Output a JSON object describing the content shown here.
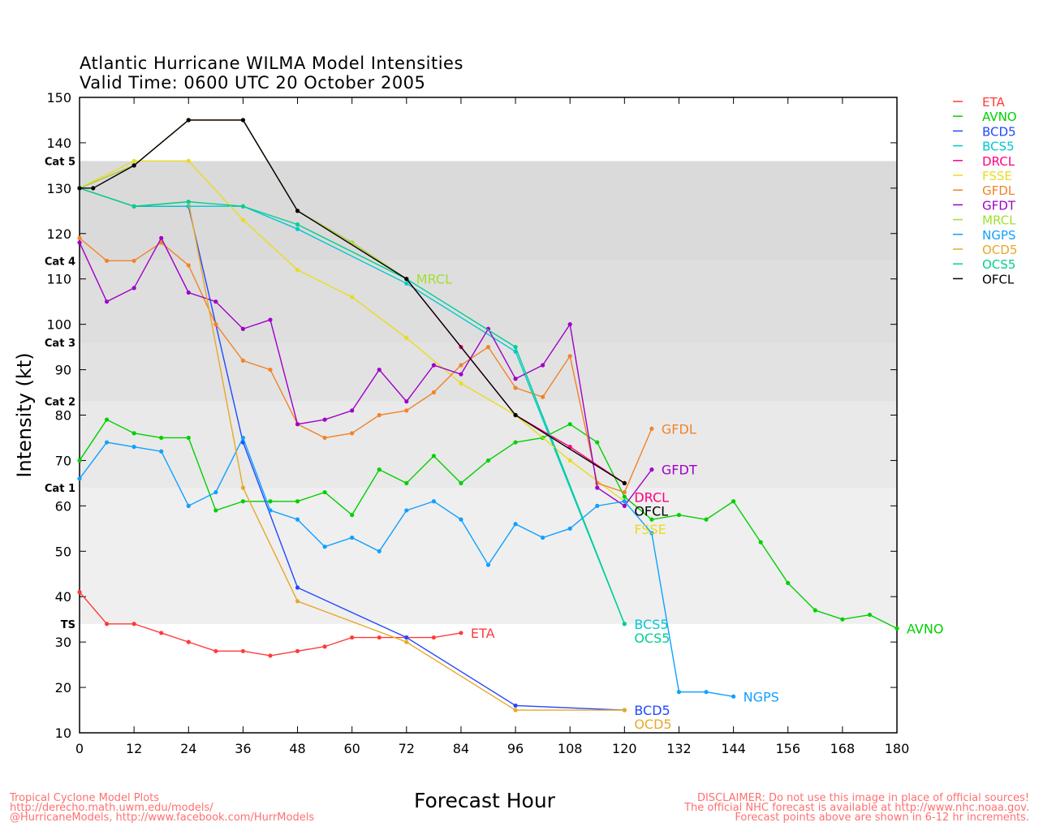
{
  "chart_data": {
    "type": "line",
    "title": "Atlantic Hurricane WILMA Model Intensities",
    "subtitle": "Valid Time: 0600 UTC 20 October 2005",
    "xlabel": "Forecast Hour",
    "ylabel": "Intensity (kt)",
    "xlim": [
      0,
      180
    ],
    "ylim": [
      10,
      150
    ],
    "xticks": [
      0,
      12,
      24,
      36,
      48,
      60,
      72,
      84,
      96,
      108,
      120,
      132,
      144,
      156,
      168,
      180
    ],
    "yticks": [
      10,
      20,
      30,
      40,
      50,
      60,
      70,
      80,
      90,
      100,
      110,
      120,
      130,
      140,
      150
    ],
    "legend_position": "right",
    "categories": [
      {
        "label": "TS",
        "min": 34,
        "max": 64,
        "color": "#efefef"
      },
      {
        "label": "Cat 1",
        "min": 64,
        "max": 83,
        "color": "#e9e9e9"
      },
      {
        "label": "Cat 2",
        "min": 83,
        "max": 96,
        "color": "#e2e2e2"
      },
      {
        "label": "Cat 3",
        "min": 96,
        "max": 114,
        "color": "#dedede"
      },
      {
        "label": "Cat 4",
        "min": 114,
        "max": 136,
        "color": "#dadada"
      },
      {
        "label": "Cat 5",
        "min": 136,
        "max": 150,
        "color": "#ffffff"
      }
    ],
    "series": [
      {
        "name": "ETA",
        "color": "#ff3b3b",
        "end_label": "ETA",
        "x": [
          0,
          6,
          12,
          18,
          24,
          30,
          36,
          42,
          48,
          54,
          60,
          66,
          72,
          78,
          84
        ],
        "y": [
          41,
          34,
          34,
          32,
          30,
          28,
          28,
          27,
          28,
          29,
          31,
          31,
          31,
          31,
          32
        ]
      },
      {
        "name": "AVNO",
        "color": "#00d000",
        "end_label": "AVNO",
        "x": [
          0,
          6,
          12,
          18,
          24,
          30,
          36,
          42,
          48,
          54,
          60,
          66,
          72,
          78,
          84,
          90,
          96,
          102,
          108,
          114,
          120,
          126,
          132,
          138,
          144,
          150,
          156,
          162,
          168,
          174,
          180
        ],
        "y": [
          70,
          79,
          76,
          75,
          75,
          59,
          61,
          61,
          61,
          63,
          58,
          68,
          65,
          71,
          65,
          70,
          74,
          75,
          78,
          74,
          62,
          57,
          58,
          57,
          61,
          52,
          43,
          37,
          35,
          36,
          33
        ]
      },
      {
        "name": "BCD5",
        "color": "#2048ff",
        "end_label": "BCD5",
        "x": [
          0,
          12,
          24,
          36,
          48,
          72,
          96,
          120
        ],
        "y": [
          130,
          126,
          126,
          74,
          42,
          31,
          16,
          15
        ]
      },
      {
        "name": "BCS5",
        "color": "#00c8d0",
        "end_label": "BCS5",
        "x": [
          0,
          12,
          24,
          36,
          48,
          72,
          96,
          120
        ],
        "y": [
          130,
          126,
          126,
          126,
          121,
          109,
          94,
          34
        ]
      },
      {
        "name": "DRCL",
        "color": "#ff0080",
        "end_label": "DRCL",
        "x": [
          0,
          12,
          24,
          36,
          48,
          60,
          72,
          84,
          96,
          108,
          120
        ],
        "y": [
          130,
          135,
          145,
          145,
          125,
          118,
          110,
          95,
          80,
          73,
          65
        ]
      },
      {
        "name": "FSSE",
        "color": "#e8dc20",
        "end_label": "FSSE",
        "x": [
          0,
          12,
          24,
          36,
          48,
          60,
          72,
          84,
          96,
          108,
          120
        ],
        "y": [
          130,
          136,
          136,
          123,
          112,
          106,
          97,
          87,
          80,
          70,
          61
        ]
      },
      {
        "name": "GFDL",
        "color": "#f08428",
        "end_label": "GFDL",
        "x": [
          0,
          6,
          12,
          18,
          24,
          30,
          36,
          42,
          48,
          54,
          60,
          66,
          72,
          78,
          84,
          90,
          96,
          102,
          108,
          114,
          120,
          126
        ],
        "y": [
          119,
          114,
          114,
          118,
          113,
          100,
          92,
          90,
          78,
          75,
          76,
          80,
          81,
          85,
          91,
          95,
          86,
          84,
          93,
          65,
          63,
          77
        ]
      },
      {
        "name": "GFDT",
        "color": "#a000c8",
        "end_label": "GFDT",
        "x": [
          0,
          6,
          12,
          18,
          24,
          30,
          36,
          42,
          48,
          54,
          60,
          66,
          72,
          78,
          84,
          90,
          96,
          102,
          108,
          114,
          120,
          126
        ],
        "y": [
          118,
          105,
          108,
          119,
          107,
          105,
          99,
          101,
          78,
          79,
          81,
          90,
          83,
          91,
          89,
          99,
          88,
          91,
          100,
          64,
          60,
          68
        ]
      },
      {
        "name": "MRCL",
        "color": "#a0e030",
        "end_label": "MRCL",
        "x": [
          0,
          12,
          24,
          36,
          48,
          60,
          72
        ],
        "y": [
          130,
          135,
          145,
          145,
          125,
          118,
          110
        ]
      },
      {
        "name": "NGPS",
        "color": "#10a0ff",
        "end_label": "NGPS",
        "x": [
          0,
          6,
          12,
          18,
          24,
          30,
          36,
          42,
          48,
          54,
          60,
          66,
          72,
          78,
          84,
          90,
          96,
          102,
          108,
          114,
          120,
          126,
          132,
          138,
          144
        ],
        "y": [
          66,
          74,
          73,
          72,
          60,
          63,
          75,
          59,
          57,
          51,
          53,
          50,
          59,
          61,
          57,
          47,
          56,
          53,
          55,
          60,
          61,
          54,
          19,
          19,
          18
        ]
      },
      {
        "name": "OCD5",
        "color": "#e8a828",
        "end_label": "OCD5",
        "x": [
          0,
          12,
          24,
          36,
          48,
          72,
          96,
          120
        ],
        "y": [
          130,
          126,
          127,
          64,
          39,
          30,
          15,
          15
        ]
      },
      {
        "name": "OCS5",
        "color": "#00d090",
        "end_label": "OCS5",
        "x": [
          0,
          12,
          24,
          36,
          48,
          72,
          96,
          120
        ],
        "y": [
          130,
          126,
          127,
          126,
          122,
          110,
          95,
          34
        ]
      },
      {
        "name": "OFCL",
        "color": "#000000",
        "end_label": "OFCL",
        "x": [
          0,
          3,
          12,
          24,
          36,
          48,
          72,
          96,
          120
        ],
        "y": [
          130,
          130,
          135,
          145,
          145,
          125,
          110,
          80,
          65
        ]
      }
    ]
  },
  "footer": {
    "left": [
      "Tropical Cyclone Model Plots",
      "http://derecho.math.uwm.edu/models/",
      "@HurricaneModels, http://www.facebook.com/HurrModels"
    ],
    "right": [
      "DISCLAIMER: Do not use this image in place of official sources!",
      "The official NHC forecast is available at http://www.nhc.noaa.gov.",
      "Forecast points above are shown in 6-12 hr increments."
    ]
  }
}
